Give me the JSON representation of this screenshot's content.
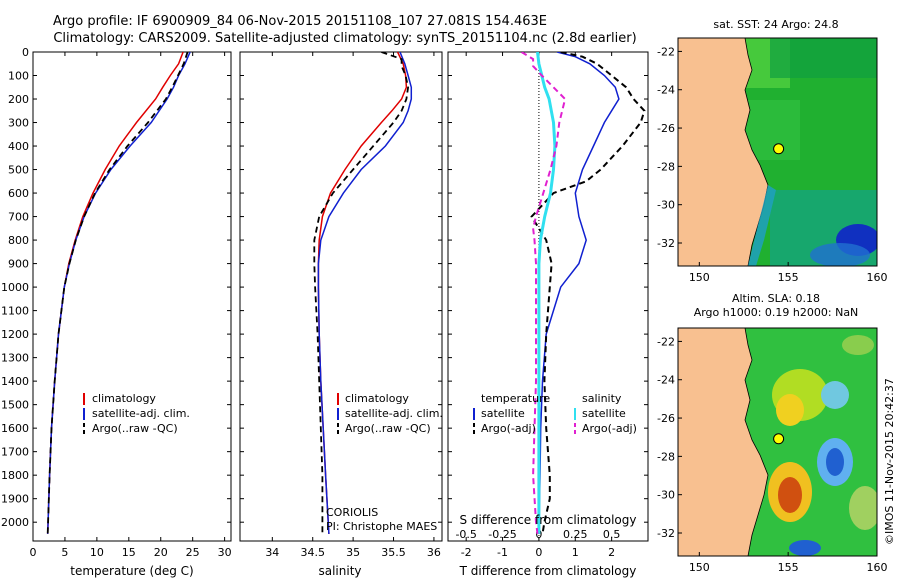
{
  "header": {
    "line1": "Argo profile: IF 6900909_84 06-Nov-2015 20151108_107 27.081S 154.463E",
    "line2": "Climatology: CARS2009. Satellite-adjusted climatology: synTS_20151104.nc (2.8d earlier)"
  },
  "colors": {
    "climatology": "#e00000",
    "satellite": "#1020d0",
    "argo": "#000000",
    "salinity_satellite": "#30e0f0",
    "salinity_argo": "#e020d0",
    "land": "#f8c090"
  },
  "chart_data": [
    {
      "type": "line",
      "id": "temperature",
      "xlabel": "temperature (deg C)",
      "xlim": [
        0,
        31
      ],
      "xticks": [
        0,
        5,
        10,
        15,
        20,
        25,
        30
      ],
      "ylim": [
        0,
        2080
      ],
      "yticks": [
        0,
        100,
        200,
        300,
        400,
        500,
        600,
        700,
        800,
        900,
        1000,
        1100,
        1200,
        1300,
        1400,
        1500,
        1600,
        1700,
        1800,
        1900,
        2000
      ],
      "legend": [
        "climatology",
        "satellite-adj. clim.",
        "Argo(..raw -QC)"
      ],
      "series": [
        {
          "name": "climatology",
          "depth": [
            0,
            50,
            100,
            150,
            200,
            300,
            400,
            500,
            600,
            700,
            800,
            900,
            1000,
            1200,
            1400,
            1600,
            1800,
            2050
          ],
          "values": [
            23.5,
            22.8,
            21.5,
            20.3,
            19.2,
            16.2,
            13.5,
            11.3,
            9.4,
            7.8,
            6.6,
            5.6,
            4.9,
            4.0,
            3.4,
            2.9,
            2.6,
            2.3
          ]
        },
        {
          "name": "satellite-adj. clim.",
          "depth": [
            0,
            50,
            100,
            150,
            200,
            300,
            400,
            500,
            600,
            700,
            800,
            900,
            1000,
            1200,
            1400,
            1600,
            1800,
            2050
          ],
          "values": [
            24.6,
            23.8,
            22.8,
            22.0,
            21.0,
            18.5,
            15.2,
            12.2,
            9.8,
            8.0,
            6.7,
            5.7,
            4.9,
            4.0,
            3.4,
            2.9,
            2.6,
            2.3
          ]
        },
        {
          "name": "Argo(..raw -QC)",
          "depth": [
            0,
            50,
            100,
            150,
            200,
            300,
            400,
            500,
            600,
            700,
            800,
            900,
            1000,
            1200,
            1400,
            1600,
            1800,
            2050
          ],
          "values": [
            24.2,
            23.6,
            22.7,
            21.8,
            20.8,
            18.0,
            14.8,
            12.0,
            9.7,
            8.0,
            6.7,
            5.7,
            4.9,
            4.0,
            3.4,
            2.9,
            2.6,
            2.3
          ]
        }
      ]
    },
    {
      "type": "line",
      "id": "salinity",
      "xlabel": "salinity",
      "xlim": [
        33.6,
        36.1
      ],
      "xticks": [
        34,
        34.5,
        35,
        35.5,
        36
      ],
      "ylim": [
        0,
        2080
      ],
      "legend": [
        "climatology",
        "satellite-adj. clim.",
        "Argo(..raw -QC)"
      ],
      "annotation": [
        "CORIOLIS",
        "PI: Christophe MAES"
      ],
      "series": [
        {
          "name": "climatology",
          "depth": [
            0,
            50,
            100,
            150,
            200,
            250,
            300,
            400,
            500,
            600,
            700,
            800,
            900,
            1000,
            1200,
            1400,
            1600,
            1800,
            2050
          ],
          "values": [
            35.55,
            35.62,
            35.65,
            35.66,
            35.6,
            35.48,
            35.35,
            35.1,
            34.9,
            34.72,
            34.62,
            34.58,
            34.57,
            34.57,
            34.58,
            34.6,
            34.63,
            34.66,
            34.7
          ]
        },
        {
          "name": "satellite-adj. clim.",
          "depth": [
            0,
            50,
            100,
            150,
            200,
            250,
            300,
            400,
            500,
            600,
            700,
            800,
            900,
            1000,
            1200,
            1400,
            1600,
            1800,
            2050
          ],
          "values": [
            35.58,
            35.64,
            35.68,
            35.72,
            35.72,
            35.68,
            35.62,
            35.4,
            35.1,
            34.88,
            34.7,
            34.6,
            34.57,
            34.57,
            34.58,
            34.6,
            34.63,
            34.66,
            34.7
          ]
        },
        {
          "name": "Argo(..raw -QC)",
          "depth": [
            0,
            30,
            60,
            100,
            150,
            200,
            250,
            300,
            400,
            500,
            600,
            700,
            800,
            900,
            1000,
            1200,
            1400,
            1600,
            1800,
            2050
          ],
          "values": [
            35.35,
            35.6,
            35.6,
            35.65,
            35.68,
            35.66,
            35.6,
            35.5,
            35.25,
            35.0,
            34.75,
            34.58,
            34.52,
            34.52,
            34.53,
            34.56,
            34.58,
            34.6,
            34.62,
            34.62
          ]
        }
      ]
    },
    {
      "type": "line",
      "id": "difference",
      "xlabel": "T difference from climatology",
      "xlabel_top": "S difference from climatology",
      "xlim": [
        -2.5,
        3
      ],
      "xticks": [
        -2,
        -1,
        0,
        1,
        2
      ],
      "xticks_top": [
        "-0.5",
        "-0.25",
        "0",
        "0.25",
        "0.5"
      ],
      "ylim": [
        0,
        2080
      ],
      "legend_temperature": [
        "temperature",
        "satellite",
        "Argo(-adj)"
      ],
      "legend_salinity": [
        "salinity",
        "satellite",
        "Argo(-adj)"
      ],
      "series": [
        {
          "name": "temperature satellite",
          "depth": [
            0,
            20,
            50,
            100,
            150,
            200,
            250,
            300,
            400,
            500,
            600,
            700,
            800,
            900,
            1000,
            1200,
            1400,
            1600,
            1800,
            2050
          ],
          "values": [
            0.5,
            1.0,
            1.4,
            1.8,
            2.1,
            2.2,
            2.0,
            1.8,
            1.5,
            1.2,
            1.0,
            1.1,
            1.3,
            1.1,
            0.6,
            0.2,
            0.1,
            0.05,
            0.03,
            0.0
          ]
        },
        {
          "name": "temperature Argo(-adj)",
          "depth": [
            0,
            20,
            50,
            100,
            150,
            200,
            250,
            300,
            400,
            500,
            550,
            600,
            700,
            800,
            900,
            1000,
            1200,
            1400,
            1600,
            1800,
            1900,
            2000,
            2050
          ],
          "values": [
            0.6,
            1.2,
            1.6,
            2.0,
            2.4,
            2.6,
            2.9,
            2.8,
            2.3,
            1.7,
            1.3,
            0.4,
            -0.2,
            0.2,
            0.35,
            0.3,
            0.2,
            0.15,
            0.2,
            0.3,
            0.3,
            0.15,
            0.1
          ]
        },
        {
          "name": "salinity satellite",
          "depth": [
            0,
            50,
            100,
            150,
            200,
            300,
            400,
            500,
            600,
            700,
            800,
            900,
            1000,
            1200,
            1400,
            1600,
            1800,
            2050
          ],
          "values": [
            -0.01,
            0.0,
            0.02,
            0.04,
            0.07,
            0.1,
            0.11,
            0.1,
            0.08,
            0.04,
            0.01,
            0.0,
            0.0,
            0.0,
            0.0,
            0.0,
            0.0,
            0.0
          ]
        },
        {
          "name": "salinity Argo(-adj)",
          "depth": [
            0,
            30,
            60,
            100,
            150,
            200,
            250,
            300,
            400,
            500,
            600,
            700,
            750,
            800,
            900,
            1000,
            1200,
            1400,
            1600,
            1800,
            2000,
            2050
          ],
          "values": [
            -0.12,
            -0.04,
            -0.04,
            0.02,
            0.1,
            0.18,
            0.16,
            0.14,
            0.12,
            0.08,
            0.03,
            -0.02,
            -0.04,
            -0.03,
            -0.02,
            -0.02,
            -0.02,
            -0.02,
            -0.03,
            -0.04,
            -0.02,
            -0.01
          ]
        }
      ]
    },
    {
      "type": "heatmap",
      "id": "sst-map",
      "title": "sat. SST: 24 Argo: 24.8",
      "xticks": [
        150,
        155,
        160
      ],
      "yticks": [
        -22,
        -24,
        -26,
        -28,
        -30,
        -32
      ],
      "xlim": [
        148.8,
        160
      ],
      "ylim": [
        -33.2,
        -21.3
      ],
      "float_position": [
        154.463,
        -27.081
      ]
    },
    {
      "type": "heatmap",
      "id": "sla-map",
      "title_line1": "Altim. SLA: 0.18",
      "title_line2": "Argo h1000: 0.19 h2000: NaN",
      "xticks": [
        150,
        155,
        160
      ],
      "yticks": [
        -22,
        -24,
        -26,
        -28,
        -30,
        -32
      ],
      "xlim": [
        148.8,
        160
      ],
      "ylim": [
        -33.2,
        -21.3
      ],
      "float_position": [
        154.463,
        -27.081
      ]
    }
  ],
  "credit": "©IMOS 11-Nov-2015 20:42:37"
}
